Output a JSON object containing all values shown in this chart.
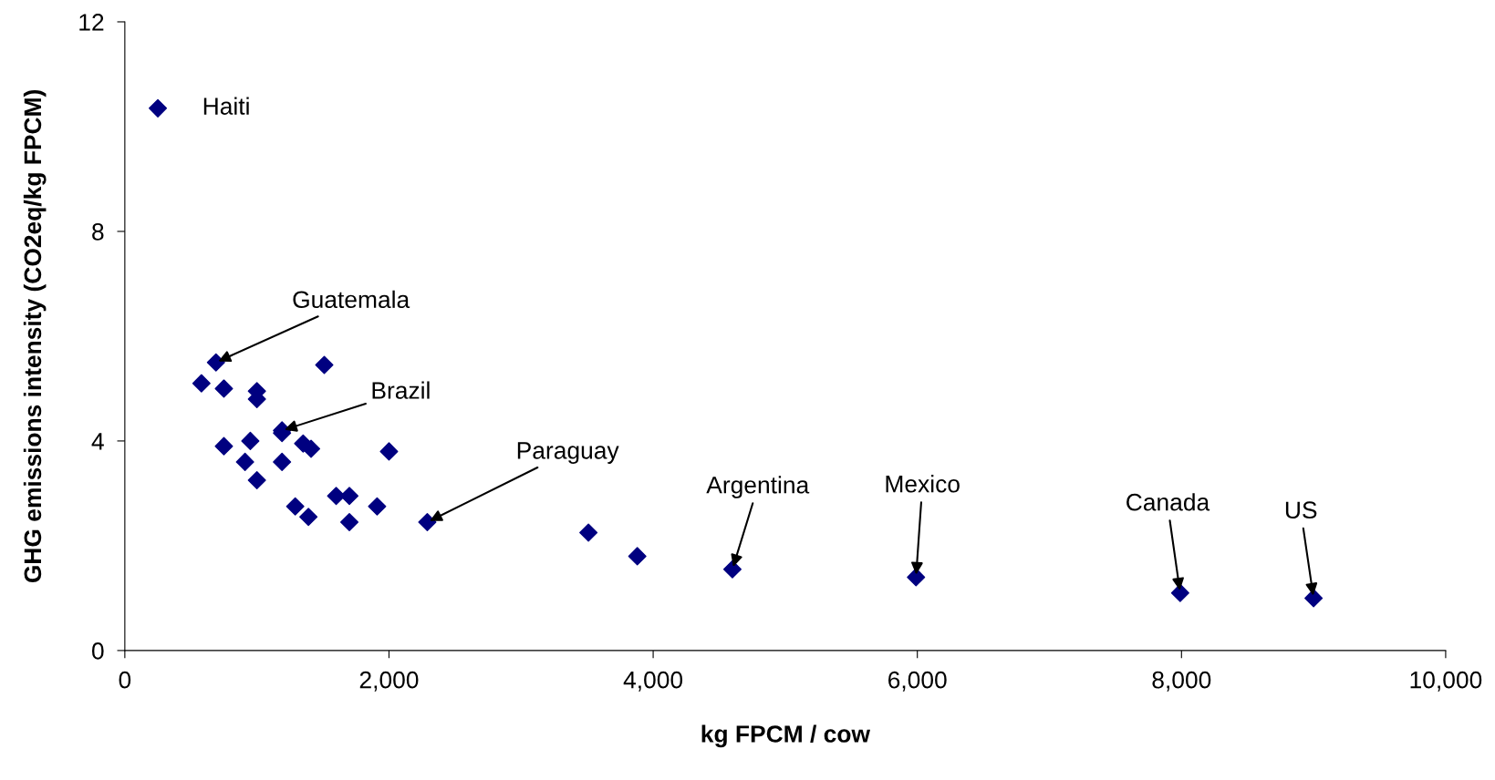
{
  "chart_data": {
    "type": "scatter",
    "xlabel": "kg FPCM / cow",
    "ylabel": "GHG emissions intensity (CO2eq/kg FPCM)",
    "x": [
      250,
      690,
      580,
      750,
      1000,
      1000,
      1510,
      1190,
      1190,
      750,
      950,
      910,
      1000,
      1190,
      1350,
      1410,
      2000,
      1290,
      1390,
      1600,
      1700,
      1700,
      1910,
      2290,
      3510,
      3880,
      4600,
      5990,
      7990,
      9000
    ],
    "series": [
      {
        "color": "#000080",
        "values": [
          10.35,
          5.5,
          5.1,
          5.0,
          4.95,
          4.8,
          5.45,
          4.2,
          4.15,
          3.9,
          4.0,
          3.6,
          3.25,
          3.6,
          3.95,
          3.85,
          3.8,
          2.75,
          2.55,
          2.95,
          2.95,
          2.45,
          2.75,
          2.45,
          2.25,
          1.8,
          1.55,
          1.4,
          1.1,
          1.0
        ]
      }
    ],
    "xlim": [
      0,
      10000
    ],
    "xticks": [
      0,
      {
        "value": 2000,
        "label": "2,000"
      },
      {
        "value": 4000,
        "label": "4,000"
      },
      {
        "value": 6000,
        "label": "6,000"
      },
      {
        "value": 8000,
        "label": "8,000"
      },
      {
        "value": 10000,
        "label": "10,000"
      }
    ],
    "ylim": [
      0,
      12
    ],
    "yticks": [
      0,
      4,
      8,
      12
    ],
    "grid": false,
    "marker": "diamond",
    "annotations": [
      {
        "text": "Haiti",
        "x": 250,
        "y": 10.35
      },
      {
        "text": "Guatemala",
        "x": 690,
        "y": 5.5
      },
      {
        "text": "Brazil",
        "x": 1190,
        "y": 4.2
      },
      {
        "text": "Paraguay",
        "x": 2290,
        "y": 2.45
      },
      {
        "text": "Argentina",
        "x": 4600,
        "y": 1.55
      },
      {
        "text": "Mexico",
        "x": 5990,
        "y": 1.4
      },
      {
        "text": "Canada",
        "x": 7990,
        "y": 1.1
      },
      {
        "text": "US",
        "x": 9000,
        "y": 1.0
      }
    ]
  }
}
